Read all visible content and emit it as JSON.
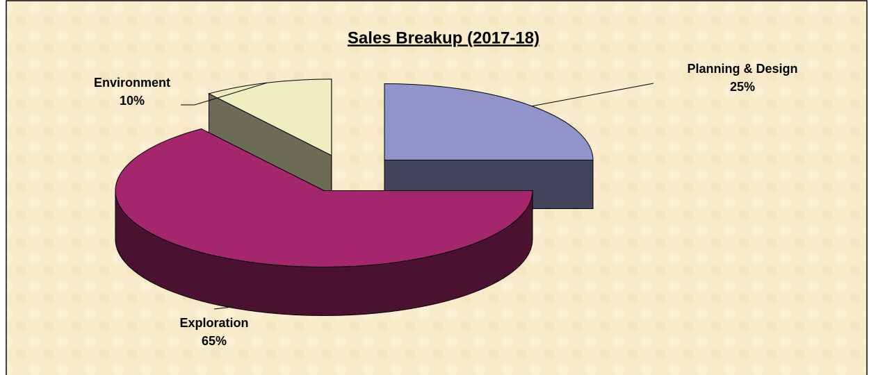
{
  "chart_data": {
    "type": "pie",
    "title": "Sales Breakup (2017-18)",
    "categories": [
      "Planning & Design",
      "Exploration",
      "Environment"
    ],
    "values": [
      25,
      65,
      10
    ],
    "value_labels": [
      "25%",
      "65%",
      "10%"
    ],
    "colors": [
      "#9194c8",
      "#a4266d",
      "#eeeec0"
    ]
  }
}
